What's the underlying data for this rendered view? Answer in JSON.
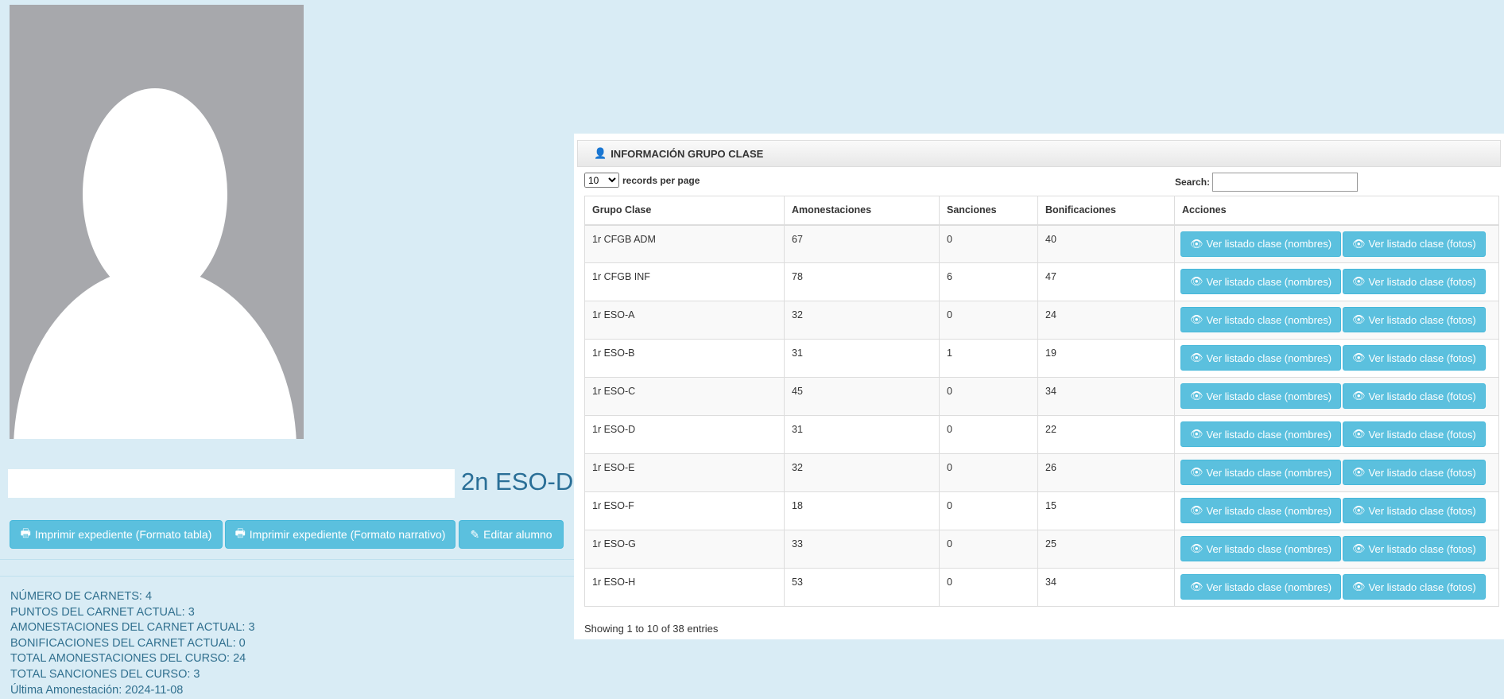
{
  "student": {
    "group": "2n ESO-D"
  },
  "buttons": {
    "print_table": "Imprimir expediente (Formato tabla)",
    "print_narrative": "Imprimir expediente (Formato narrativo)",
    "edit": "Editar alumno"
  },
  "stats": [
    "NÚMERO DE CARNETS: 4",
    "PUNTOS DEL CARNET ACTUAL: 3",
    "AMONESTACIONES DEL CARNET ACTUAL: 3",
    "BONIFICACIONES DEL CARNET ACTUAL: 0",
    "TOTAL AMONESTACIONES DEL CURSO: 24",
    "TOTAL SANCIONES DEL CURSO: 3",
    "Última Amonestación: 2024-11-08"
  ],
  "panel": {
    "title": "INFORMACIÓN GRUPO CLASE",
    "page_size": "10",
    "records_label": "records per page",
    "search_label": "Search:",
    "search_value": "",
    "footer": "Showing 1 to 10 of 38 entries"
  },
  "table": {
    "headers": [
      "Grupo Clase",
      "Amonestaciones",
      "Sanciones",
      "Bonificaciones",
      "Acciones"
    ],
    "action_names": "Ver listado clase (nombres)",
    "action_photos": "Ver listado clase (fotos)",
    "rows": [
      [
        "1r CFGB ADM",
        "67",
        "0",
        "40"
      ],
      [
        "1r CFGB INF",
        "78",
        "6",
        "47"
      ],
      [
        "1r ESO-A",
        "32",
        "0",
        "24"
      ],
      [
        "1r ESO-B",
        "31",
        "1",
        "19"
      ],
      [
        "1r ESO-C",
        "45",
        "0",
        "34"
      ],
      [
        "1r ESO-D",
        "31",
        "0",
        "22"
      ],
      [
        "1r ESO-E",
        "32",
        "0",
        "26"
      ],
      [
        "1r ESO-F",
        "18",
        "0",
        "15"
      ],
      [
        "1r ESO-G",
        "33",
        "0",
        "25"
      ],
      [
        "1r ESO-H",
        "53",
        "0",
        "34"
      ]
    ]
  },
  "colors": {
    "accent": "#5bc0de",
    "background": "#d9ecf5",
    "text_blue": "#31708f"
  }
}
